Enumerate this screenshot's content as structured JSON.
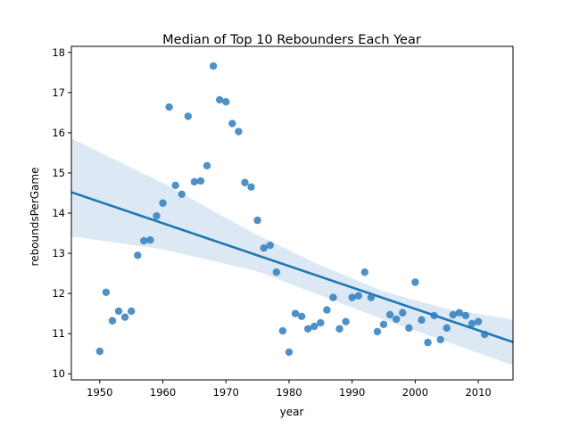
{
  "chart_data": {
    "type": "scatter",
    "title": "Median of Top 10 Rebounders Each Year",
    "xlabel": "year",
    "ylabel": "reboundsPerGame",
    "xlim": [
      1945.5,
      2015.5
    ],
    "ylim": [
      9.85,
      18.15
    ],
    "xticks": [
      1950,
      1960,
      1970,
      1980,
      1990,
      2000,
      2010
    ],
    "yticks": [
      10,
      11,
      12,
      13,
      14,
      15,
      16,
      17,
      18
    ],
    "grid": false,
    "legend": null,
    "point_color": "#2f7ebd",
    "line_color": "#1f77b4",
    "band_color": "#dce8f3",
    "x": [
      1950,
      1951,
      1952,
      1953,
      1954,
      1955,
      1956,
      1957,
      1958,
      1959,
      1960,
      1961,
      1962,
      1963,
      1964,
      1965,
      1966,
      1967,
      1968,
      1969,
      1970,
      1971,
      1972,
      1973,
      1974,
      1975,
      1976,
      1977,
      1978,
      1979,
      1980,
      1981,
      1982,
      1983,
      1984,
      1985,
      1986,
      1987,
      1988,
      1989,
      1990,
      1991,
      1992,
      1993,
      1994,
      1995,
      1996,
      1997,
      1998,
      1999,
      2000,
      2001,
      2002,
      2003,
      2004,
      2005,
      2006,
      2007,
      2008,
      2009,
      2010,
      2011
    ],
    "y": [
      10.56,
      12.03,
      11.32,
      11.56,
      11.41,
      11.56,
      12.95,
      13.31,
      13.33,
      13.93,
      14.25,
      16.64,
      14.69,
      14.47,
      16.41,
      14.78,
      14.8,
      15.18,
      17.66,
      16.82,
      16.77,
      16.23,
      16.03,
      14.76,
      14.65,
      13.82,
      13.13,
      13.2,
      12.53,
      11.07,
      10.54,
      11.5,
      11.43,
      11.12,
      11.18,
      11.27,
      11.59,
      11.9,
      11.12,
      11.3,
      11.9,
      11.94,
      12.53,
      11.9,
      11.05,
      11.23,
      11.47,
      11.36,
      11.52,
      11.14,
      12.28,
      11.34,
      10.78,
      11.45,
      10.85,
      11.14,
      11.47,
      11.52,
      11.45,
      11.25,
      11.3,
      10.98
    ],
    "regression": {
      "x": [
        1945.5,
        2015.5
      ],
      "y": [
        14.52,
        10.79
      ]
    },
    "confidence_band": {
      "x": [
        1945.5,
        1960,
        1975,
        1985,
        1995,
        2005,
        2015.5
      ],
      "upper": [
        15.86,
        14.75,
        13.45,
        12.7,
        12.05,
        11.62,
        11.35
      ],
      "lower": [
        13.42,
        13.1,
        12.55,
        11.95,
        11.35,
        10.8,
        10.21
      ]
    }
  }
}
